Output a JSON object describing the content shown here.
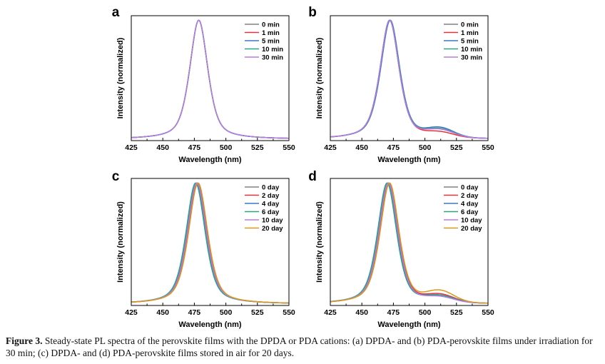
{
  "chart_data": [
    {
      "type": "line",
      "panel": "a",
      "xlabel": "Wavelength (nm)",
      "ylabel": "Intensity (normalized)",
      "xlim": [
        425,
        550
      ],
      "xticks": [
        425,
        450,
        475,
        500,
        525,
        550
      ],
      "ylim": [
        0,
        1.05
      ],
      "legend_position": "top-right",
      "series": [
        {
          "name": "0 min",
          "color": "#808080",
          "peak": 478.5,
          "fwhm": 17,
          "shoulder": 0
        },
        {
          "name": "1 min",
          "color": "#e8333b",
          "peak": 478.5,
          "fwhm": 17,
          "shoulder": 0
        },
        {
          "name": "5 min",
          "color": "#3a78c3",
          "peak": 478.5,
          "fwhm": 17,
          "shoulder": 0
        },
        {
          "name": "10 min",
          "color": "#2aa683",
          "peak": 478.5,
          "fwhm": 17,
          "shoulder": 0
        },
        {
          "name": "30 min",
          "color": "#b57be3",
          "peak": 478.5,
          "fwhm": 17,
          "shoulder": 0
        }
      ]
    },
    {
      "type": "line",
      "panel": "b",
      "xlabel": "Wavelength (nm)",
      "ylabel": "Intensity (normalized)",
      "xlim": [
        425,
        550
      ],
      "xticks": [
        425,
        450,
        475,
        500,
        525,
        550
      ],
      "ylim": [
        0,
        1.05
      ],
      "legend_position": "top-right",
      "series": [
        {
          "name": "0 min",
          "color": "#808080",
          "peak": 472,
          "fwhm": 18,
          "shoulder": 0.06
        },
        {
          "name": "1 min",
          "color": "#e8333b",
          "peak": 472,
          "fwhm": 18,
          "shoulder": 0.04
        },
        {
          "name": "5 min",
          "color": "#3a78c3",
          "peak": 472.5,
          "fwhm": 18,
          "shoulder": 0.075
        },
        {
          "name": "10 min",
          "color": "#2aa683",
          "peak": 472,
          "fwhm": 18,
          "shoulder": 0.065
        },
        {
          "name": "30 min",
          "color": "#b57be3",
          "peak": 472,
          "fwhm": 18,
          "shoulder": 0.06
        }
      ]
    },
    {
      "type": "line",
      "panel": "c",
      "xlabel": "Wavelength (nm)",
      "ylabel": "Intensity (normalized)",
      "xlim": [
        425,
        550
      ],
      "xticks": [
        425,
        450,
        475,
        500,
        525,
        550
      ],
      "ylim": [
        0,
        1.05
      ],
      "legend_position": "top-right",
      "series": [
        {
          "name": "0 day",
          "color": "#808080",
          "peak": 477,
          "fwhm": 18,
          "shoulder": 0
        },
        {
          "name": "2 day",
          "color": "#e8333b",
          "peak": 477.5,
          "fwhm": 18,
          "shoulder": 0
        },
        {
          "name": "4 day",
          "color": "#3a78c3",
          "peak": 476.5,
          "fwhm": 18,
          "shoulder": 0
        },
        {
          "name": "6 day",
          "color": "#2aa683",
          "peak": 476,
          "fwhm": 18,
          "shoulder": 0
        },
        {
          "name": "10 day",
          "color": "#b57be3",
          "peak": 477,
          "fwhm": 18,
          "shoulder": 0
        },
        {
          "name": "20 day",
          "color": "#d99a1c",
          "peak": 478,
          "fwhm": 18,
          "shoulder": 0
        }
      ]
    },
    {
      "type": "line",
      "panel": "d",
      "xlabel": "Wavelength (nm)",
      "ylabel": "Intensity (normalized)",
      "xlim": [
        425,
        550
      ],
      "xticks": [
        425,
        450,
        475,
        500,
        525,
        550
      ],
      "ylim": [
        0,
        1.05
      ],
      "legend_position": "top-right",
      "series": [
        {
          "name": "0 day",
          "color": "#808080",
          "peak": 471,
          "fwhm": 18,
          "shoulder": 0.05
        },
        {
          "name": "2 day",
          "color": "#e8333b",
          "peak": 471.5,
          "fwhm": 18,
          "shoulder": 0.06
        },
        {
          "name": "4 day",
          "color": "#3a78c3",
          "peak": 470.5,
          "fwhm": 18,
          "shoulder": 0.05
        },
        {
          "name": "6 day",
          "color": "#2aa683",
          "peak": 470,
          "fwhm": 18,
          "shoulder": 0.05
        },
        {
          "name": "10 day",
          "color": "#b57be3",
          "peak": 471,
          "fwhm": 18,
          "shoulder": 0.04
        },
        {
          "name": "20 day",
          "color": "#d99a1c",
          "peak": 472,
          "fwhm": 18,
          "shoulder": 0.09
        }
      ]
    }
  ],
  "caption": {
    "label": "Figure 3.",
    "text": "Steady-state PL spectra of the perovskite films with the DPDA or PDA cations: (a) DPDA- and (b) PDA-perovskite films under irradiation for 30 min; (c) DPDA- and (d) PDA-perovskite films stored in air for 20 days."
  }
}
